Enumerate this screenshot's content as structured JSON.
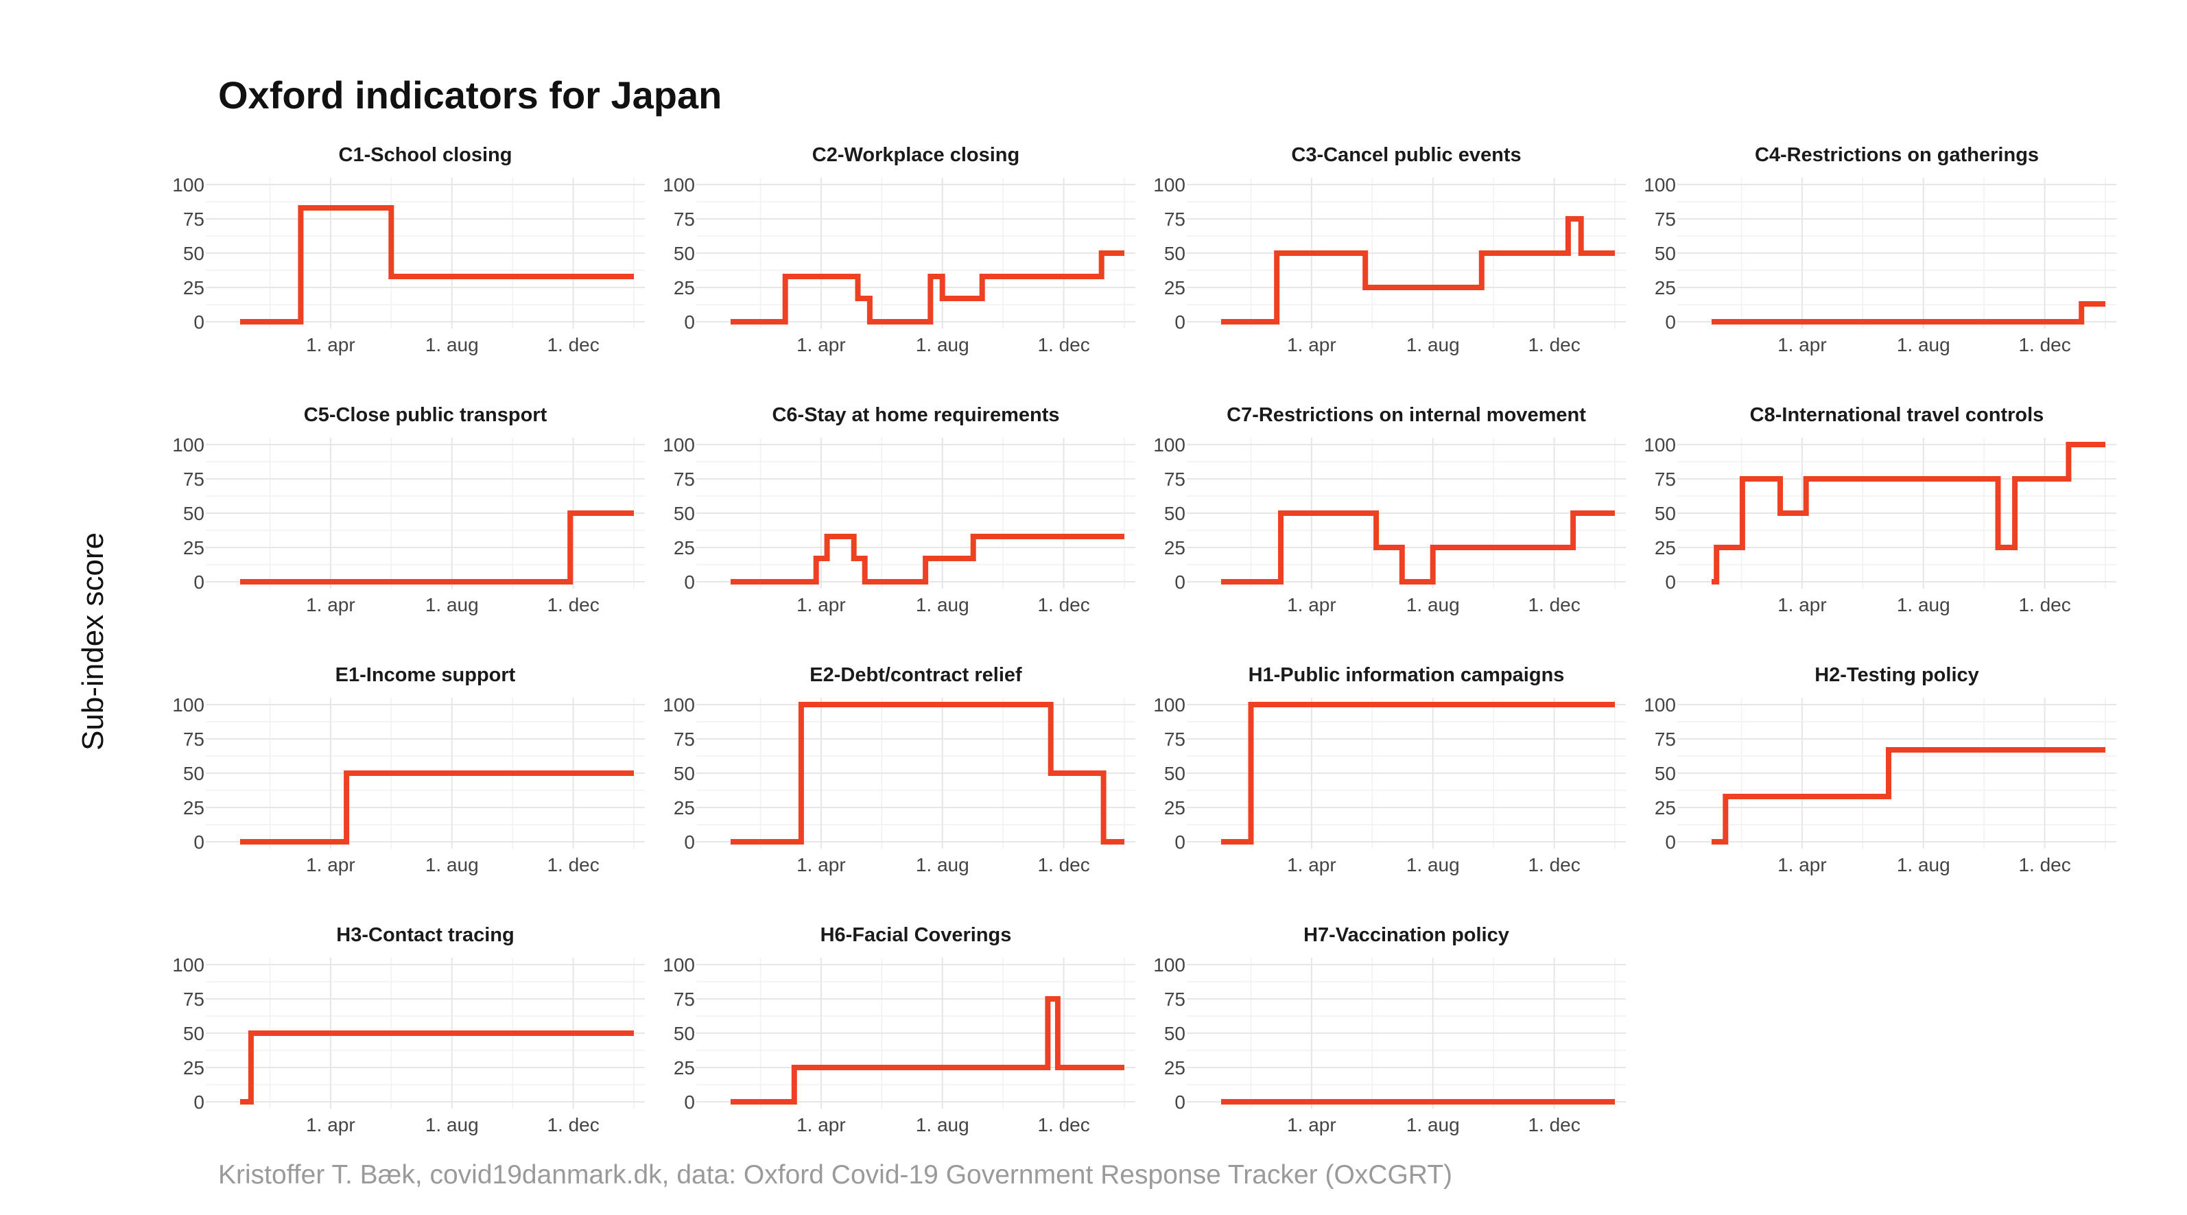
{
  "chart_data": {
    "type": "line",
    "title": "Oxford indicators for Japan",
    "ylabel": "Sub-index score",
    "caption": "Kristoffer T. Bæk, covid19danmark.dk, data: Oxford Covid-19 Government Response Tracker (OxCGRT)",
    "ylim": [
      0,
      100
    ],
    "xlim": [
      "2020-01-01",
      "2021-01-31"
    ],
    "yticks": [
      0,
      25,
      50,
      75,
      100
    ],
    "xticks": [
      {
        "date": "2020-04-01",
        "label": "1. apr"
      },
      {
        "date": "2020-08-01",
        "label": "1. aug"
      },
      {
        "date": "2020-12-01",
        "label": "1. dec"
      }
    ],
    "grid": true,
    "line_color": "#ee4022",
    "panels": [
      {
        "name": "C1-School closing",
        "points": [
          [
            "2020-01-01",
            0
          ],
          [
            "2020-03-02",
            0
          ],
          [
            "2020-03-02",
            83
          ],
          [
            "2020-06-01",
            83
          ],
          [
            "2020-06-01",
            33
          ],
          [
            "2021-01-31",
            33
          ]
        ]
      },
      {
        "name": "C2-Workplace closing",
        "points": [
          [
            "2020-01-01",
            0
          ],
          [
            "2020-02-25",
            0
          ],
          [
            "2020-02-25",
            33
          ],
          [
            "2020-05-08",
            33
          ],
          [
            "2020-05-08",
            17
          ],
          [
            "2020-05-20",
            17
          ],
          [
            "2020-05-20",
            0
          ],
          [
            "2020-07-20",
            0
          ],
          [
            "2020-07-20",
            33
          ],
          [
            "2020-08-01",
            33
          ],
          [
            "2020-08-01",
            17
          ],
          [
            "2020-09-10",
            17
          ],
          [
            "2020-09-10",
            33
          ],
          [
            "2021-01-08",
            33
          ],
          [
            "2021-01-08",
            50
          ],
          [
            "2021-01-31",
            50
          ]
        ]
      },
      {
        "name": "C3-Cancel public events",
        "points": [
          [
            "2020-01-01",
            0
          ],
          [
            "2020-02-26",
            0
          ],
          [
            "2020-02-26",
            50
          ],
          [
            "2020-05-25",
            50
          ],
          [
            "2020-05-25",
            25
          ],
          [
            "2020-09-19",
            25
          ],
          [
            "2020-09-19",
            50
          ],
          [
            "2020-12-15",
            50
          ],
          [
            "2020-12-15",
            75
          ],
          [
            "2020-12-28",
            75
          ],
          [
            "2020-12-28",
            50
          ],
          [
            "2021-01-31",
            50
          ]
        ]
      },
      {
        "name": "C4-Restrictions on gatherings",
        "points": [
          [
            "2020-01-01",
            0
          ],
          [
            "2021-01-07",
            0
          ],
          [
            "2021-01-07",
            13
          ],
          [
            "2021-01-31",
            13
          ]
        ]
      },
      {
        "name": "C5-Close public transport",
        "points": [
          [
            "2020-01-01",
            0
          ],
          [
            "2020-11-28",
            0
          ],
          [
            "2020-11-28",
            50
          ],
          [
            "2021-01-31",
            50
          ]
        ]
      },
      {
        "name": "C6-Stay at home requirements",
        "points": [
          [
            "2020-01-01",
            0
          ],
          [
            "2020-03-27",
            0
          ],
          [
            "2020-03-27",
            17
          ],
          [
            "2020-04-07",
            17
          ],
          [
            "2020-04-07",
            33
          ],
          [
            "2020-05-04",
            33
          ],
          [
            "2020-05-04",
            17
          ],
          [
            "2020-05-15",
            17
          ],
          [
            "2020-05-15",
            0
          ],
          [
            "2020-07-15",
            0
          ],
          [
            "2020-07-15",
            17
          ],
          [
            "2020-09-01",
            17
          ],
          [
            "2020-09-01",
            33
          ],
          [
            "2021-01-31",
            33
          ]
        ]
      },
      {
        "name": "C7-Restrictions on internal movement",
        "points": [
          [
            "2020-01-01",
            0
          ],
          [
            "2020-03-01",
            0
          ],
          [
            "2020-03-01",
            50
          ],
          [
            "2020-06-05",
            50
          ],
          [
            "2020-06-05",
            25
          ],
          [
            "2020-07-01",
            25
          ],
          [
            "2020-07-01",
            0
          ],
          [
            "2020-08-01",
            0
          ],
          [
            "2020-08-01",
            25
          ],
          [
            "2020-12-20",
            25
          ],
          [
            "2020-12-20",
            50
          ],
          [
            "2021-01-31",
            50
          ]
        ]
      },
      {
        "name": "C8-International travel controls",
        "points": [
          [
            "2020-01-01",
            0
          ],
          [
            "2020-01-06",
            0
          ],
          [
            "2020-01-06",
            25
          ],
          [
            "2020-02-01",
            25
          ],
          [
            "2020-02-01",
            75
          ],
          [
            "2020-03-10",
            75
          ],
          [
            "2020-03-10",
            50
          ],
          [
            "2020-04-05",
            50
          ],
          [
            "2020-04-05",
            75
          ],
          [
            "2020-10-15",
            75
          ],
          [
            "2020-10-15",
            25
          ],
          [
            "2020-11-01",
            25
          ],
          [
            "2020-11-01",
            75
          ],
          [
            "2020-12-25",
            75
          ],
          [
            "2020-12-25",
            100
          ],
          [
            "2021-01-31",
            100
          ]
        ]
      },
      {
        "name": "E1-Income support",
        "points": [
          [
            "2020-01-01",
            0
          ],
          [
            "2020-04-17",
            0
          ],
          [
            "2020-04-17",
            50
          ],
          [
            "2021-01-31",
            50
          ]
        ]
      },
      {
        "name": "E2-Debt/contract relief",
        "points": [
          [
            "2020-01-01",
            0
          ],
          [
            "2020-03-12",
            0
          ],
          [
            "2020-03-12",
            100
          ],
          [
            "2020-11-18",
            100
          ],
          [
            "2020-11-18",
            50
          ],
          [
            "2021-01-10",
            50
          ],
          [
            "2021-01-10",
            0
          ],
          [
            "2021-01-31",
            0
          ]
        ]
      },
      {
        "name": "H1-Public information campaigns",
        "points": [
          [
            "2020-01-01",
            0
          ],
          [
            "2020-01-31",
            0
          ],
          [
            "2020-01-31",
            100
          ],
          [
            "2021-01-31",
            100
          ]
        ]
      },
      {
        "name": "H2-Testing policy",
        "points": [
          [
            "2020-01-01",
            0
          ],
          [
            "2020-01-15",
            0
          ],
          [
            "2020-01-15",
            33
          ],
          [
            "2020-06-27",
            33
          ],
          [
            "2020-06-27",
            67
          ],
          [
            "2021-01-31",
            67
          ]
        ]
      },
      {
        "name": "H3-Contact tracing",
        "points": [
          [
            "2020-01-01",
            0
          ],
          [
            "2020-01-12",
            0
          ],
          [
            "2020-01-12",
            50
          ],
          [
            "2021-01-31",
            50
          ]
        ]
      },
      {
        "name": "H6-Facial Coverings",
        "points": [
          [
            "2020-01-01",
            0
          ],
          [
            "2020-03-05",
            0
          ],
          [
            "2020-03-05",
            25
          ],
          [
            "2020-11-15",
            25
          ],
          [
            "2020-11-15",
            75
          ],
          [
            "2020-11-25",
            75
          ],
          [
            "2020-11-25",
            25
          ],
          [
            "2021-01-31",
            25
          ]
        ]
      },
      {
        "name": "H7-Vaccination policy",
        "points": [
          [
            "2020-01-01",
            0
          ],
          [
            "2021-01-31",
            0
          ]
        ]
      }
    ]
  }
}
